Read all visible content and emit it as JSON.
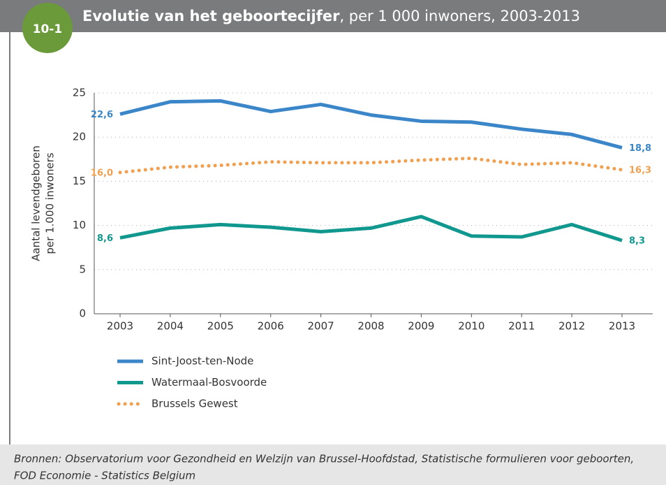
{
  "badge": "10-1",
  "chart_data": {
    "type": "line",
    "title": "Evolutie van het geboortecijfer",
    "subtitle": ", per 1 000 inwoners, 2003-2013",
    "y_label": [
      "Aantal levendgeboren",
      "per 1.000 inwoners"
    ],
    "categories": [
      "2003",
      "2004",
      "2005",
      "2006",
      "2007",
      "2008",
      "2009",
      "2010",
      "2011",
      "2012",
      "2013"
    ],
    "ylim": [
      0,
      25
    ],
    "yticks": [
      0,
      5,
      10,
      15,
      20,
      25
    ],
    "grid": true,
    "series": [
      {
        "name": "Sint-Joost-ten-Node",
        "color": "#3a86c8",
        "style": "solid",
        "values": [
          22.6,
          24.0,
          24.1,
          22.9,
          23.7,
          22.5,
          21.8,
          21.7,
          20.9,
          20.3,
          18.8
        ],
        "value_labels": [
          "22,6",
          null,
          null,
          null,
          null,
          null,
          null,
          null,
          null,
          null,
          "18,8"
        ]
      },
      {
        "name": "Watermaal-Bosvoorde",
        "color": "#10978e",
        "style": "solid",
        "values": [
          8.6,
          9.7,
          10.1,
          9.8,
          9.3,
          9.7,
          11.0,
          8.8,
          8.7,
          10.1,
          8.3
        ],
        "value_labels": [
          "8,6",
          null,
          null,
          null,
          null,
          null,
          null,
          null,
          null,
          null,
          "8,3"
        ]
      },
      {
        "name": "Brussels Gewest",
        "color": "#f0a050",
        "style": "dotted",
        "values": [
          16.0,
          16.6,
          16.8,
          17.2,
          17.1,
          17.1,
          17.4,
          17.6,
          16.9,
          17.1,
          16.3
        ],
        "value_labels": [
          "16,0",
          null,
          null,
          null,
          null,
          null,
          null,
          null,
          null,
          null,
          "16,3"
        ]
      }
    ]
  },
  "source": [
    "Bronnen: Observatorium voor Gezondheid en Welzijn van Brussel-Hoofdstad, Statistische formulieren voor geboorten,",
    "FOD Economie - Statistics Belgium"
  ]
}
